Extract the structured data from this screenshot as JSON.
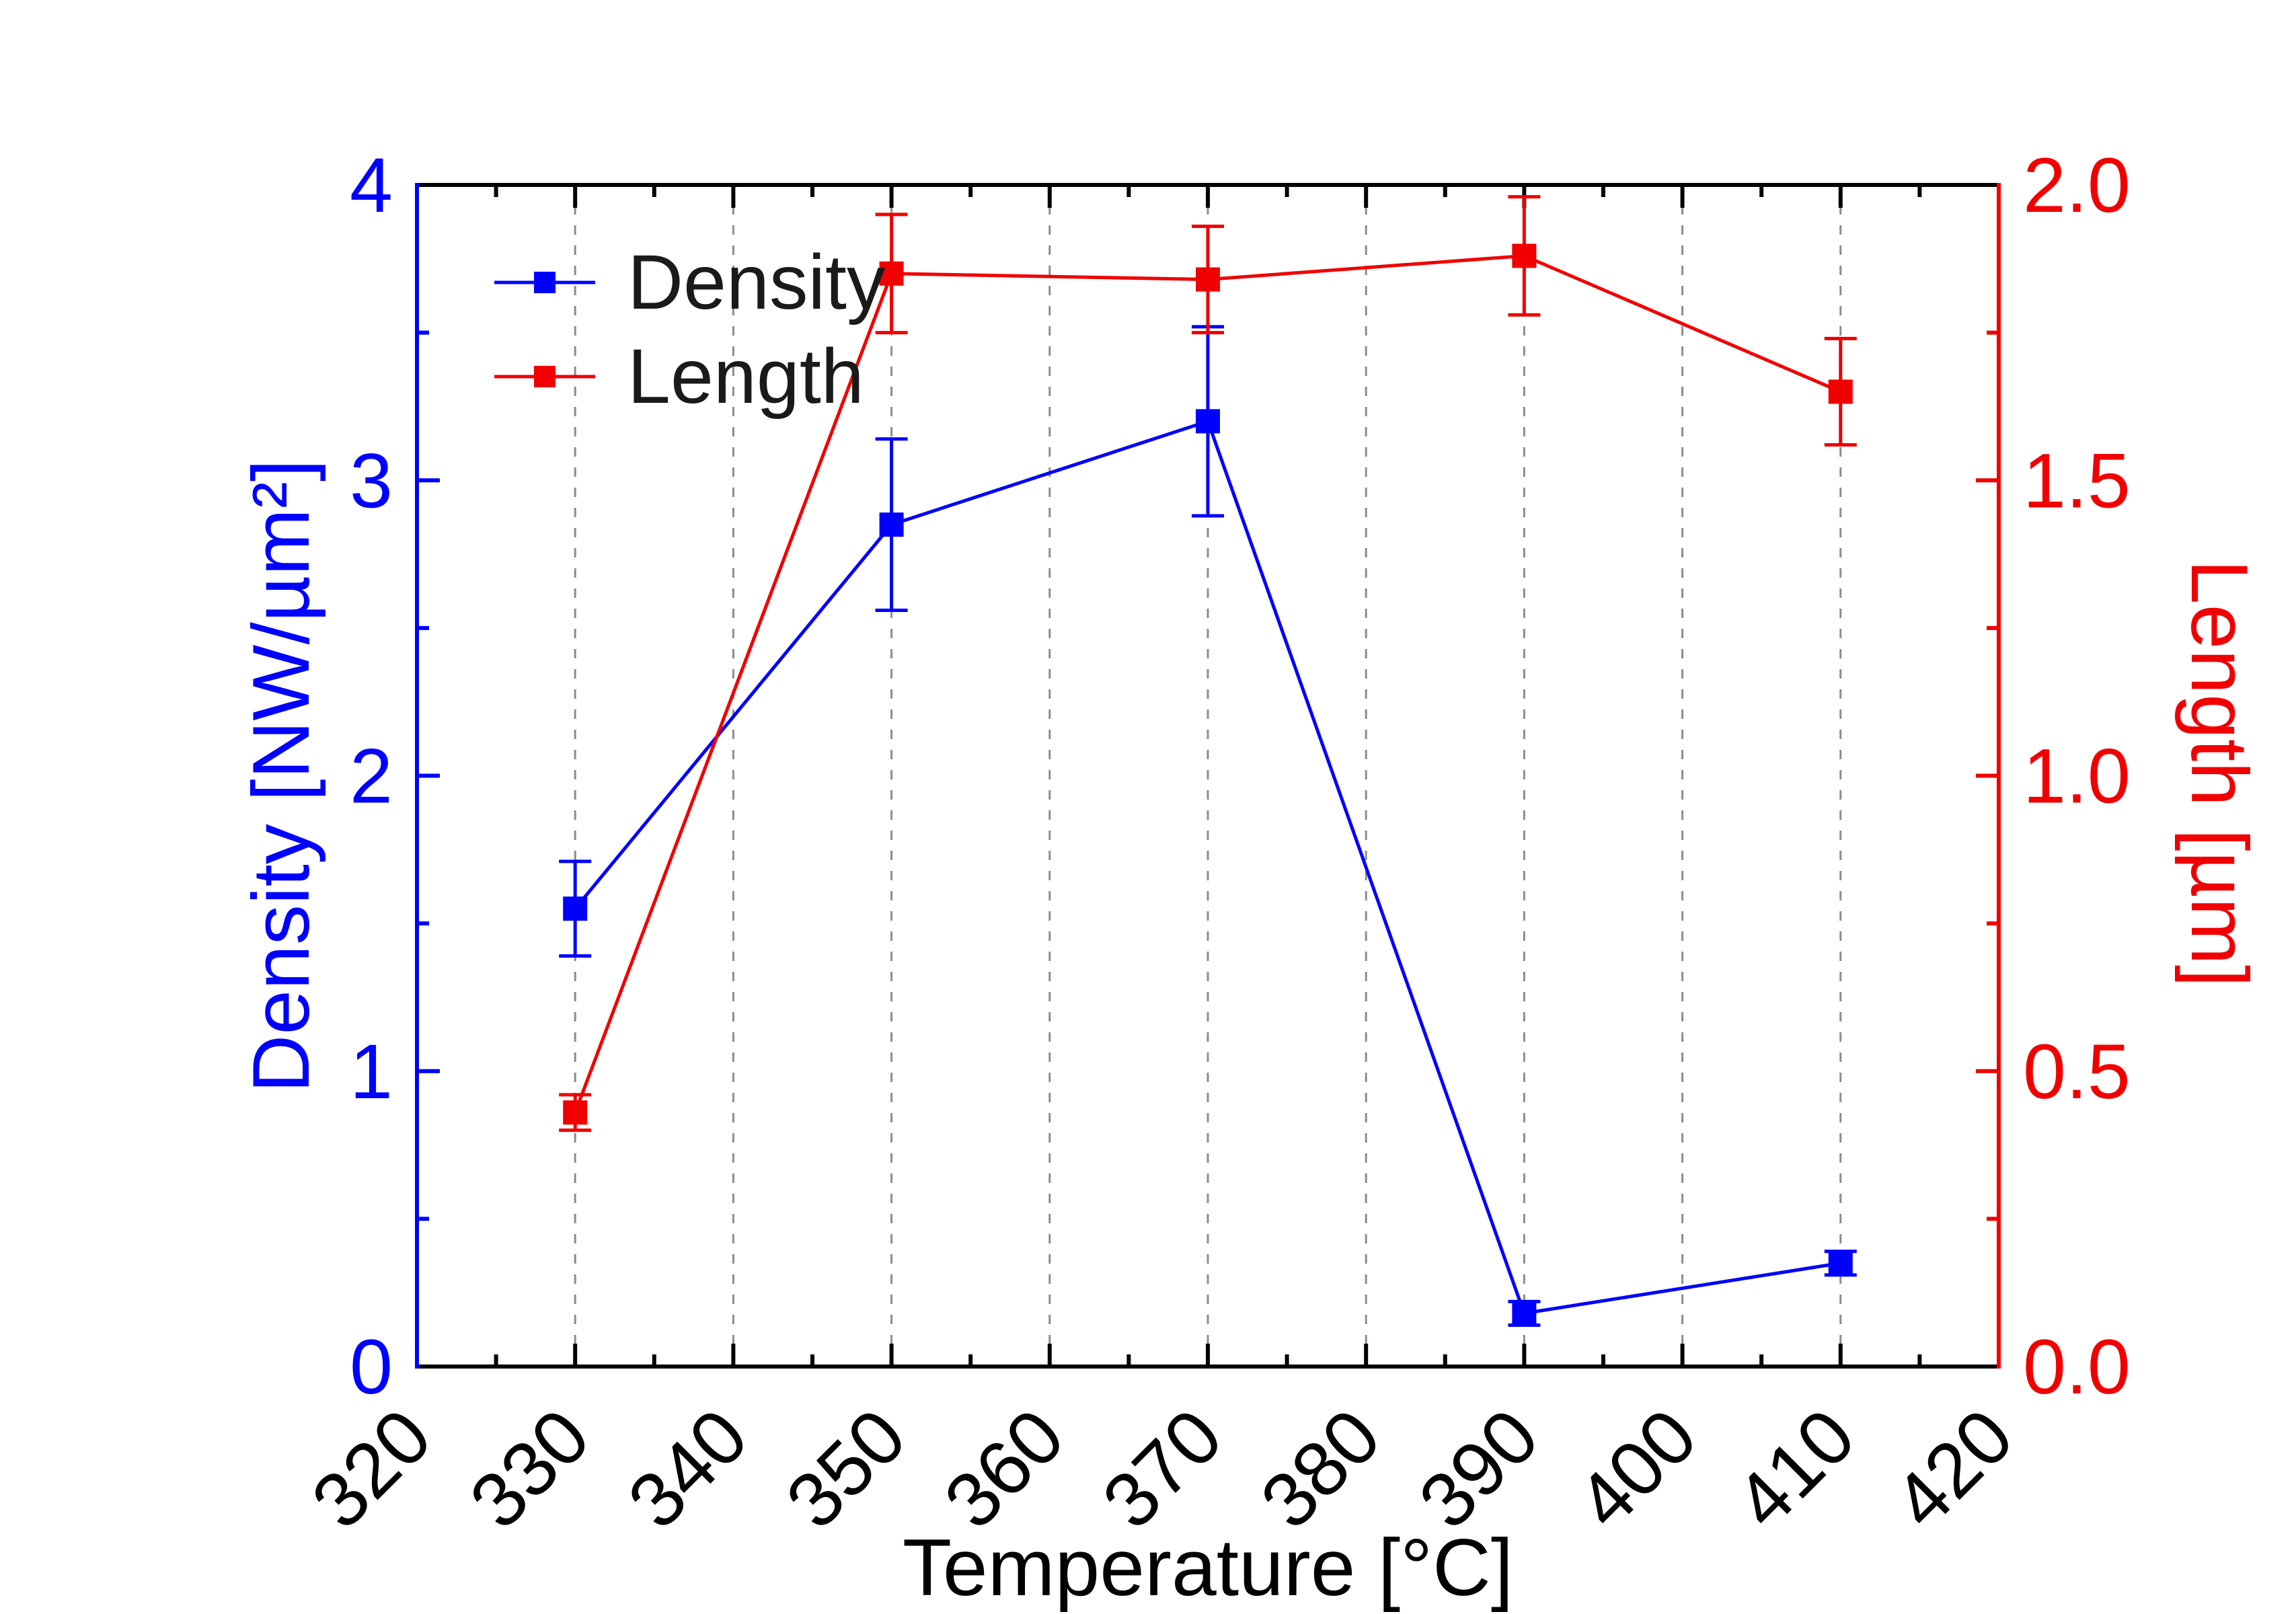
{
  "chart_data": {
    "type": "line",
    "xlabel": "Temperature [°C]",
    "ylabel_left": "Density [NW/µm²]",
    "ylabel_right": "Length [µm]",
    "xlim": [
      320,
      420
    ],
    "ylim_left": [
      0,
      4
    ],
    "ylim_right": [
      0,
      2
    ],
    "x_major_ticks": [
      320,
      330,
      340,
      350,
      360,
      370,
      380,
      390,
      400,
      410,
      420
    ],
    "x_tick_labels": [
      "320",
      "330",
      "340",
      "350",
      "360",
      "370",
      "380",
      "390",
      "400",
      "410",
      "420"
    ],
    "x_minor_step": 5,
    "y_left_major_ticks": [
      0,
      1,
      2,
      3,
      4
    ],
    "y_left_tick_labels": [
      "0",
      "1",
      "2",
      "3",
      "4"
    ],
    "y_left_minor_step": 0.5,
    "y_right_major_ticks": [
      0,
      0.5,
      1,
      1.5,
      2
    ],
    "y_right_tick_labels": [
      "0.0",
      "0.5",
      "1.0",
      "1.5",
      "2.0"
    ],
    "y_right_minor_step": 0.25,
    "grid": {
      "vertical_dashed": true,
      "color": "#8c8c8c"
    },
    "axes_colors": {
      "left": "#0000ff",
      "right": "#f00000",
      "frame": "#000000"
    },
    "x": [
      330,
      350,
      370,
      390,
      410
    ],
    "series": [
      {
        "name": "Density",
        "axis": "left",
        "color": "#0000ff",
        "marker": "square",
        "values": [
          1.55,
          2.85,
          3.2,
          0.18,
          0.35
        ],
        "errors": [
          0.16,
          0.29,
          0.32,
          0.04,
          0.04
        ]
      },
      {
        "name": "Length",
        "axis": "right",
        "color": "#f00000",
        "marker": "square",
        "values": [
          0.43,
          1.85,
          1.84,
          1.88,
          1.65
        ],
        "errors": [
          0.03,
          0.1,
          0.09,
          0.1,
          0.09
        ]
      }
    ],
    "legend": {
      "position": "top-left"
    }
  }
}
